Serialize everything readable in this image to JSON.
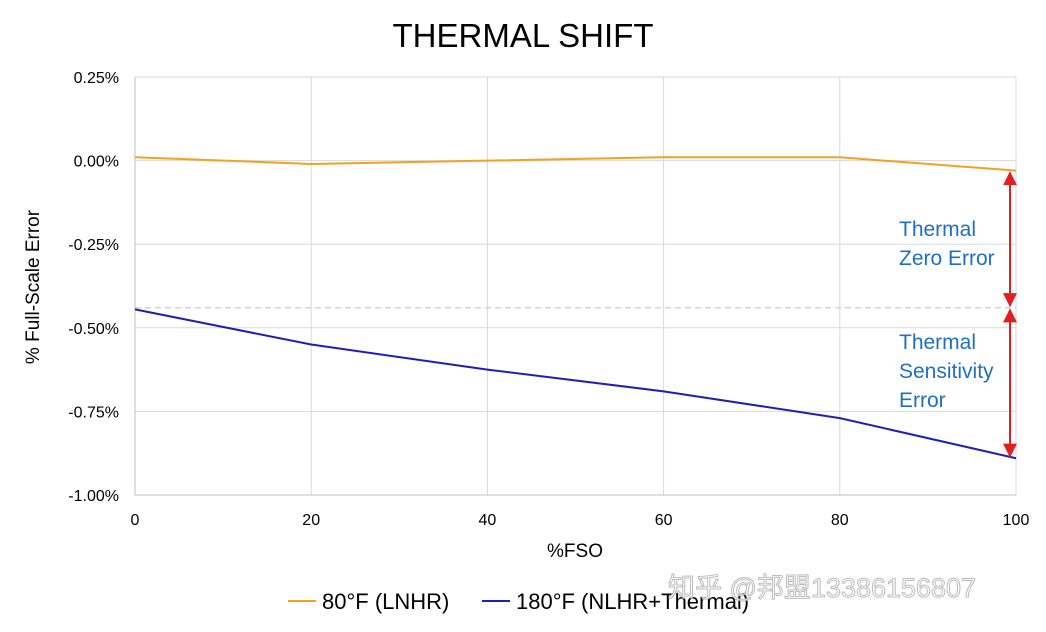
{
  "chart_data": {
    "type": "line",
    "title": "THERMAL SHIFT",
    "xlabel": "%FSO",
    "ylabel": "% Full-Scale Error",
    "x": [
      0,
      20,
      40,
      60,
      80,
      100
    ],
    "xlim": [
      0,
      100
    ],
    "ylim": [
      -1.0,
      0.25
    ],
    "x_ticks": [
      "0",
      "20",
      "40",
      "60",
      "80",
      "100"
    ],
    "y_ticks": [
      "0.25%",
      "0.00%",
      "-0.25%",
      "-0.50%",
      "-0.75%",
      "-1.00%"
    ],
    "grid": true,
    "legend_position": "bottom",
    "series": [
      {
        "name": "80°F (LNHR)",
        "color": "#F4A020",
        "values": [
          0.01,
          -0.01,
          0.0,
          0.01,
          0.01,
          -0.03
        ]
      },
      {
        "name": "180°F (NLHR+Thermal)",
        "color": "#1F1FB4",
        "values": [
          -0.445,
          -0.55,
          -0.625,
          -0.69,
          -0.77,
          -0.89
        ]
      }
    ],
    "reference_line": {
      "value": -0.44,
      "style": "dashed",
      "color": "#cccccc"
    },
    "annotations": [
      {
        "lines": [
          "Thermal",
          "Zero Error"
        ],
        "color": "#1F6FC8",
        "arrow_from": -0.03,
        "arrow_to": -0.44,
        "arrow_color": "#E02020"
      },
      {
        "lines": [
          "Thermal",
          "Sensitivity",
          "Error"
        ],
        "color": "#1F6FC8",
        "arrow_from": -0.44,
        "arrow_to": -0.89,
        "arrow_color": "#E02020"
      }
    ]
  },
  "watermark": "知乎 @邦盟13386156807"
}
